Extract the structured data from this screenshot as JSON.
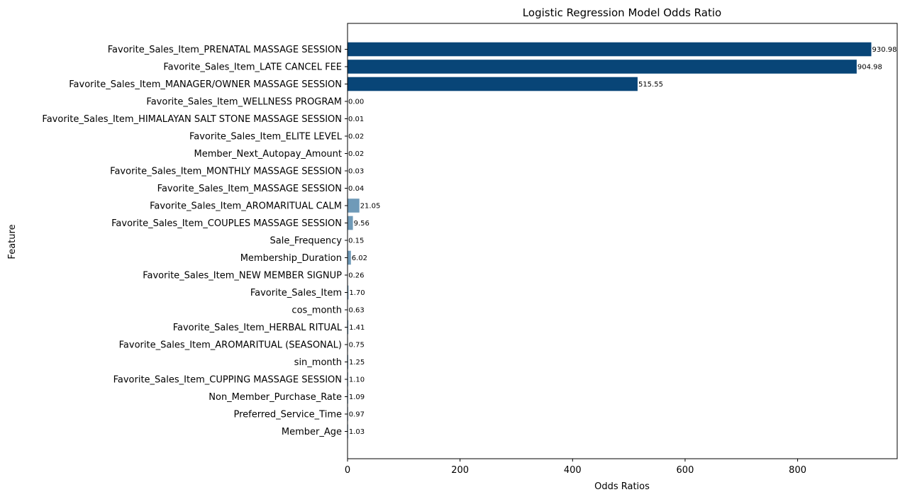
{
  "chart_data": {
    "type": "bar",
    "orientation": "horizontal",
    "title": "Logistic Regression Model Odds Ratio",
    "xlabel": "Odds Ratios",
    "ylabel": "Feature",
    "xlim": [
      0,
      977
    ],
    "xticks": [
      0,
      200,
      400,
      600,
      800
    ],
    "grid": false,
    "reference_line": {
      "x": 0,
      "style": "dotted"
    },
    "colors": {
      "large": "#084577",
      "small": "#6f9ab8"
    },
    "categories": [
      "Favorite_Sales_Item_PRENATAL MASSAGE SESSION",
      "Favorite_Sales_Item_LATE CANCEL FEE",
      "Favorite_Sales_Item_MANAGER/OWNER MASSAGE SESSION",
      "Favorite_Sales_Item_WELLNESS PROGRAM",
      "Favorite_Sales_Item_HIMALAYAN SALT STONE MASSAGE SESSION",
      "Favorite_Sales_Item_ELITE LEVEL",
      "Member_Next_Autopay_Amount",
      "Favorite_Sales_Item_MONTHLY MASSAGE SESSION",
      "Favorite_Sales_Item_MASSAGE SESSION",
      "Favorite_Sales_Item_AROMARITUAL CALM",
      "Favorite_Sales_Item_COUPLES MASSAGE SESSION",
      "Sale_Frequency",
      "Membership_Duration",
      "Favorite_Sales_Item_NEW MEMBER SIGNUP",
      "Favorite_Sales_Item",
      "cos_month",
      "Favorite_Sales_Item_HERBAL RITUAL",
      "Favorite_Sales_Item_AROMARITUAL (SEASONAL)",
      "sin_month",
      "Favorite_Sales_Item_CUPPING MASSAGE SESSION",
      "Non_Member_Purchase_Rate",
      "Preferred_Service_Time",
      "Member_Age"
    ],
    "values": [
      930.98,
      904.98,
      515.55,
      0.0,
      0.01,
      0.02,
      0.02,
      0.03,
      0.04,
      21.05,
      9.56,
      0.15,
      6.02,
      0.26,
      1.7,
      0.63,
      1.41,
      0.75,
      1.25,
      1.1,
      1.09,
      0.97,
      1.03
    ],
    "value_labels": [
      "930.98",
      "904.98",
      "515.55",
      "0.00",
      "0.01",
      "0.02",
      "0.02",
      "0.03",
      "0.04",
      "21.05",
      "9.56",
      "0.15",
      "6.02",
      "0.26",
      "1.70",
      "0.63",
      "1.41",
      "0.75",
      "1.25",
      "1.10",
      "1.09",
      "0.97",
      "1.03"
    ]
  }
}
